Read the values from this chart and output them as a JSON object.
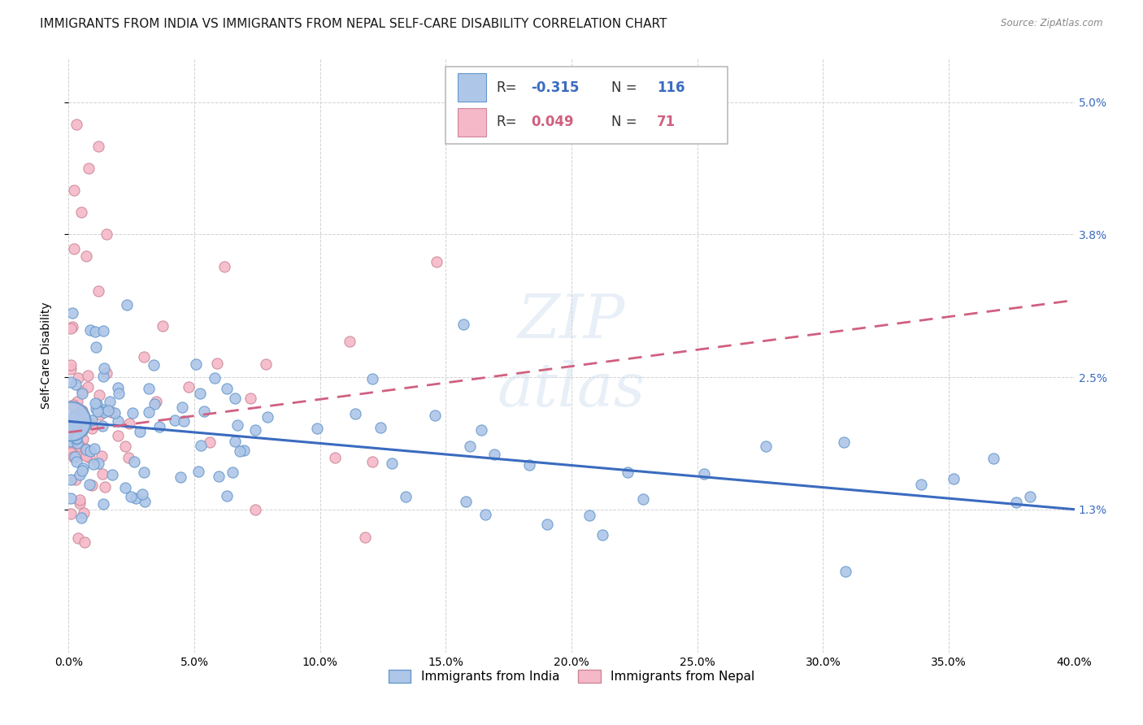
{
  "title": "IMMIGRANTS FROM INDIA VS IMMIGRANTS FROM NEPAL SELF-CARE DISABILITY CORRELATION CHART",
  "source": "Source: ZipAtlas.com",
  "ylabel": "Self-Care Disability",
  "yticks": [
    0.013,
    0.025,
    0.038,
    0.05
  ],
  "ytick_labels": [
    "1.3%",
    "2.5%",
    "3.8%",
    "5.0%"
  ],
  "watermark": "ZIPatlas",
  "legend_india_R": "-0.315",
  "legend_india_N": "116",
  "legend_nepal_R": "0.049",
  "legend_nepal_N": "71",
  "color_india": "#aec6e8",
  "color_india_line": "#3a6bbf",
  "color_india_edge": "#6699cc",
  "color_nepal": "#f5b8c8",
  "color_nepal_line": "#d06080",
  "color_nepal_edge": "#cc8899",
  "xmin": 0.0,
  "xmax": 0.4,
  "ymin": 0.0,
  "ymax": 0.054,
  "grid_color": "#cccccc",
  "background_color": "#ffffff",
  "title_fontsize": 11,
  "axis_label_fontsize": 10,
  "tick_fontsize": 9,
  "legend_fontsize": 12
}
